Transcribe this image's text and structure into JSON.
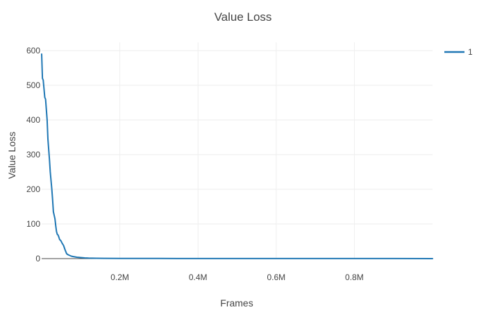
{
  "chart_data": {
    "type": "line",
    "title": "Value Loss",
    "xlabel": "Frames",
    "ylabel": "Value Loss",
    "xlim": [
      0,
      1000000
    ],
    "ylim": [
      0,
      600
    ],
    "x_ticks": [
      {
        "value": 200000,
        "label": "0.2M"
      },
      {
        "value": 400000,
        "label": "0.4M"
      },
      {
        "value": 600000,
        "label": "0.6M"
      },
      {
        "value": 800000,
        "label": "0.8M"
      }
    ],
    "y_ticks": [
      {
        "value": 0,
        "label": "0"
      },
      {
        "value": 100,
        "label": "100"
      },
      {
        "value": 200,
        "label": "200"
      },
      {
        "value": 300,
        "label": "300"
      },
      {
        "value": 400,
        "label": "400"
      },
      {
        "value": 500,
        "label": "500"
      },
      {
        "value": 600,
        "label": "600"
      }
    ],
    "grid": true,
    "legend_position": "top-right",
    "series": [
      {
        "name": "1",
        "color": "#1f77b4",
        "x": [
          0,
          2000,
          4000,
          8000,
          10000,
          14000,
          16000,
          20000,
          22000,
          24000,
          26000,
          28000,
          30000,
          32000,
          34000,
          36000,
          38000,
          40000,
          42000,
          44000,
          46000,
          48000,
          50000,
          52000,
          56000,
          60000,
          64000,
          68000,
          72000,
          76000,
          80000,
          85000,
          90000,
          95000,
          100000,
          110000,
          120000,
          140000,
          160000,
          200000,
          300000,
          400000,
          500000,
          600000,
          700000,
          800000,
          900000,
          1000000
        ],
        "y": [
          590,
          520,
          515,
          465,
          460,
          400,
          345,
          285,
          250,
          225,
          200,
          170,
          135,
          125,
          115,
          95,
          78,
          70,
          68,
          62,
          55,
          53,
          50,
          45,
          38,
          25,
          14,
          11,
          9,
          7,
          6,
          5,
          4,
          3.5,
          3,
          2,
          1.5,
          1,
          0.8,
          0.5,
          0.4,
          0.3,
          0.3,
          0.25,
          0.2,
          0.2,
          0.2,
          0.1
        ]
      }
    ]
  }
}
